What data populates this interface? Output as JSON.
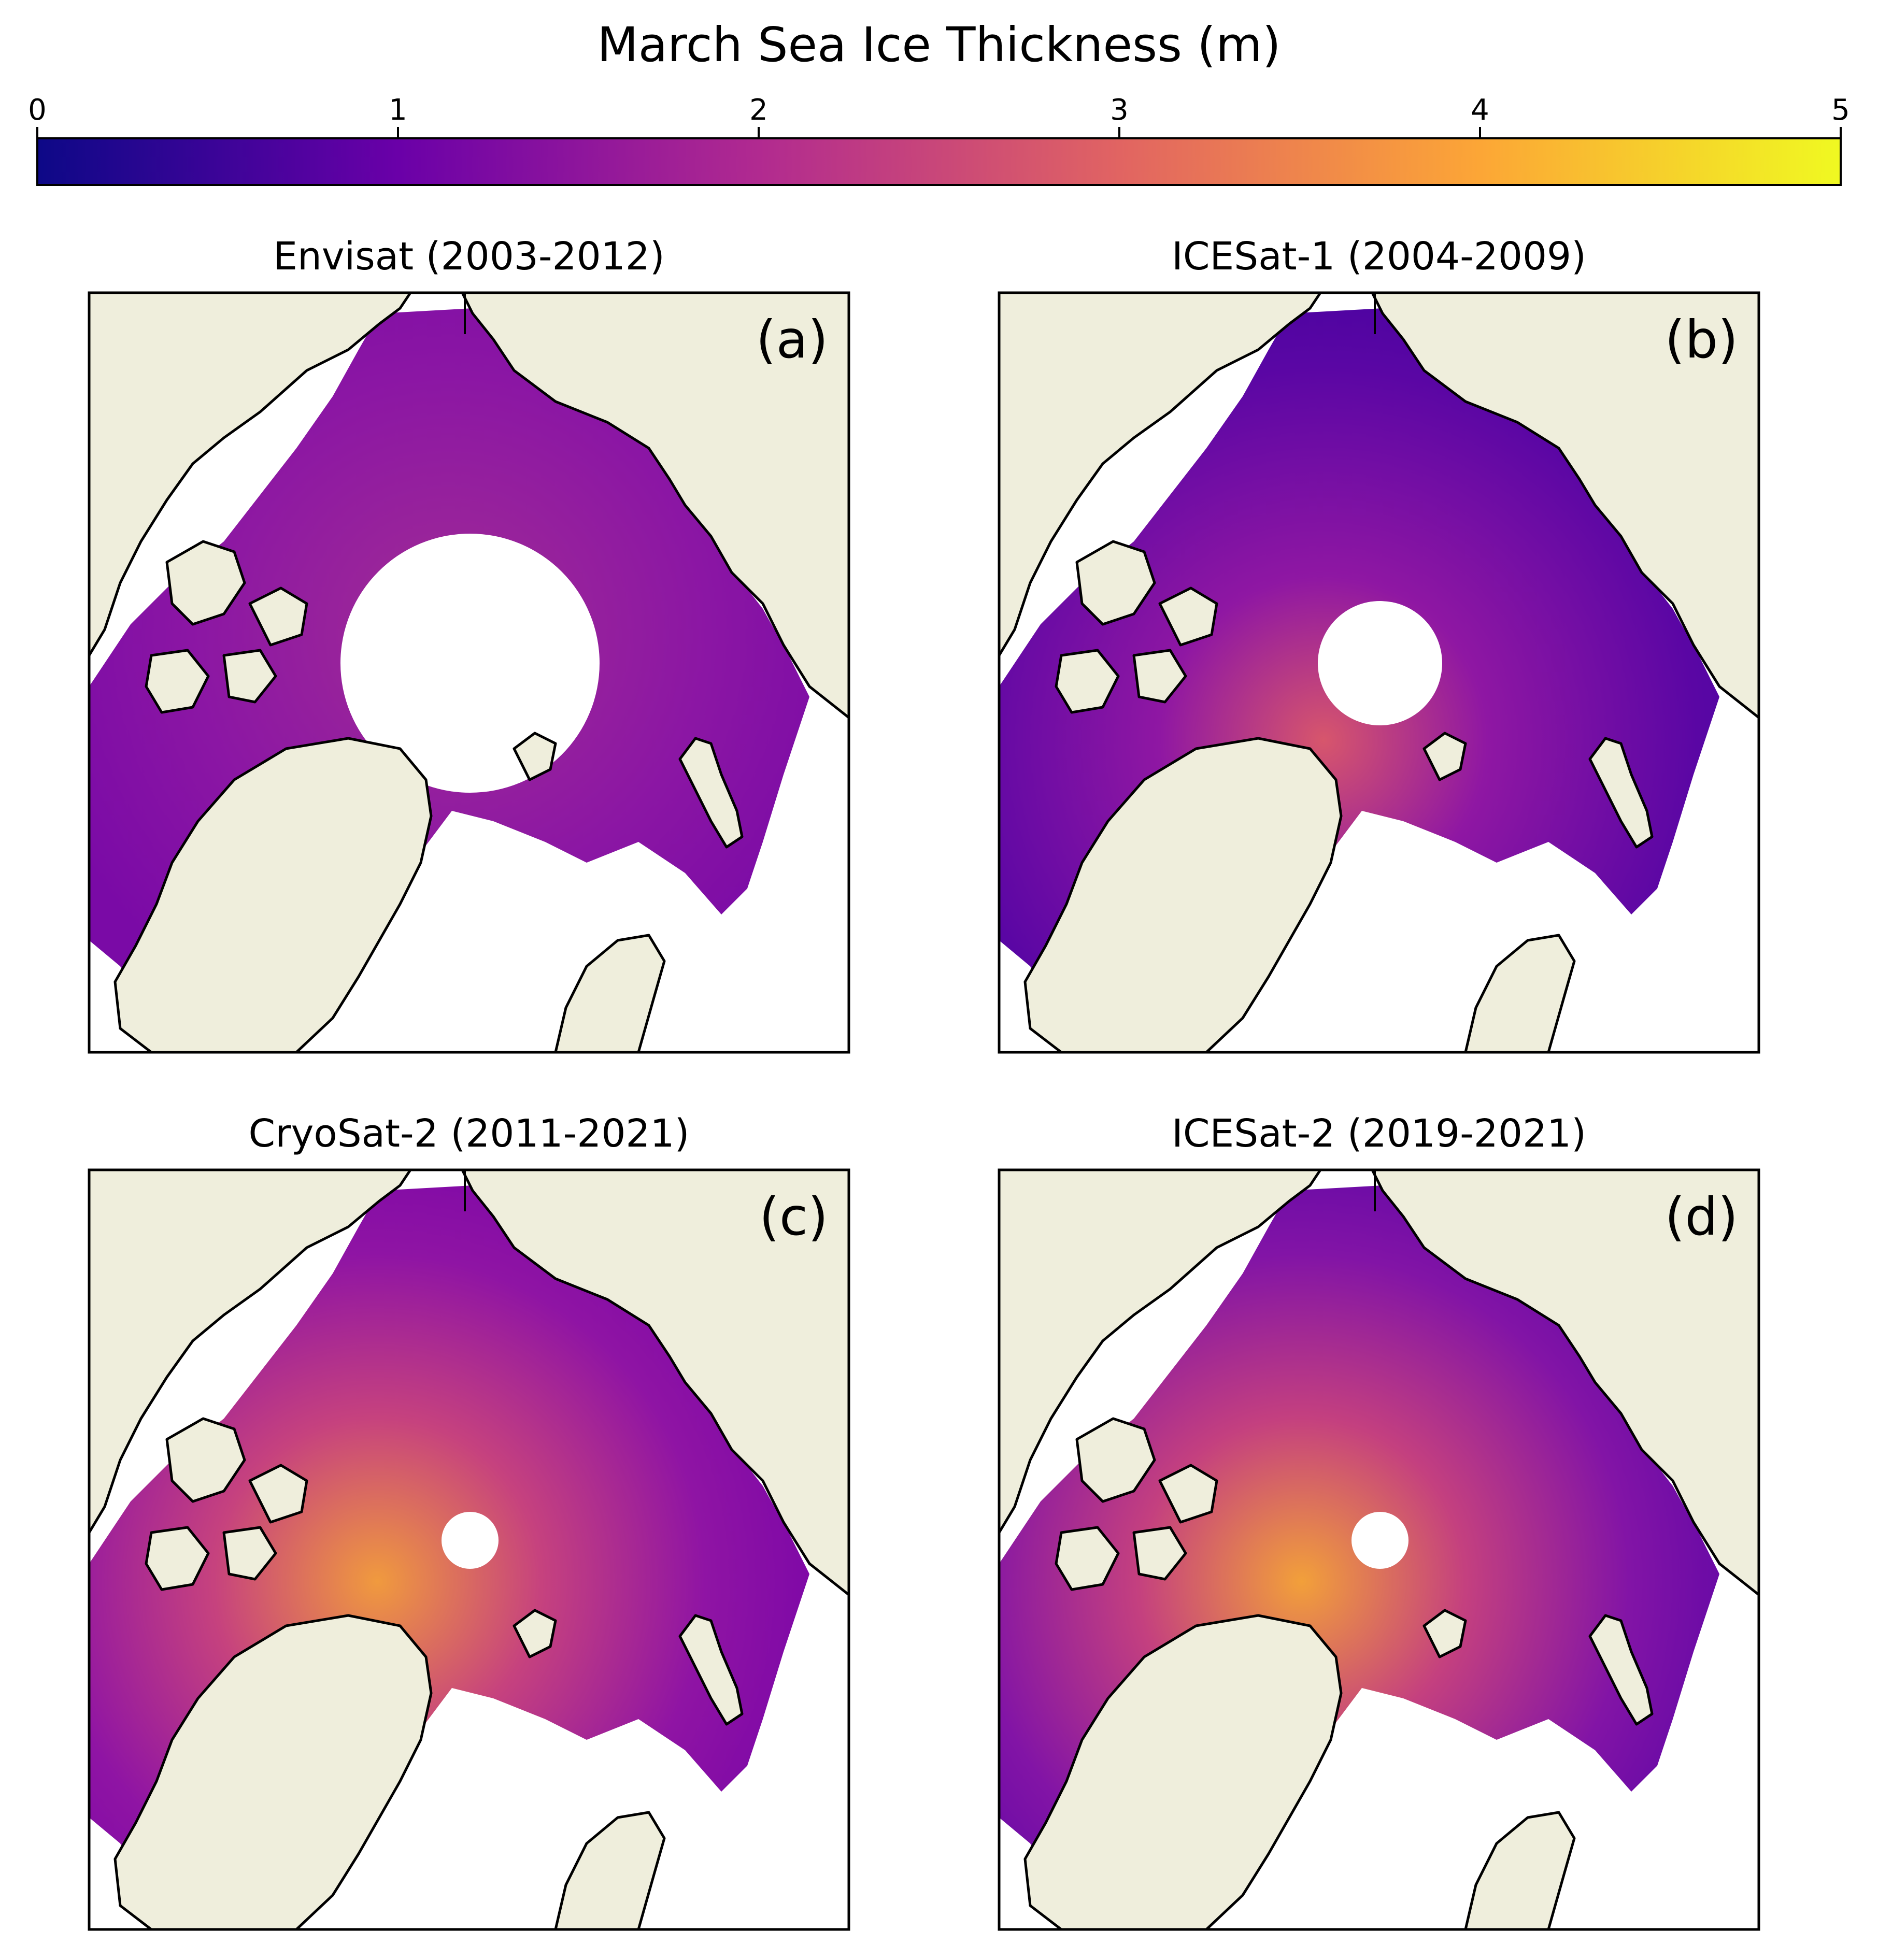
{
  "figure": {
    "title": "March Sea Ice Thickness (m)"
  },
  "colorbar": {
    "min": 0,
    "max": 5,
    "ticks": [
      "0",
      "1",
      "2",
      "3",
      "4",
      "5"
    ],
    "colormap": "plasma",
    "stops": [
      "#0d0887",
      "#6a00a8",
      "#b12a90",
      "#e16462",
      "#fca636",
      "#f0f921"
    ]
  },
  "colors": {
    "land": "#efeedc",
    "ocean_nodata": "#ffffff",
    "coast": "#000000"
  },
  "panels": [
    {
      "id": "a",
      "title": "Envisat (2003-2012)",
      "label": "(a)",
      "pole_hole_radius_km": "large"
    },
    {
      "id": "b",
      "title": "ICESat-1 (2004-2009)",
      "label": "(b)",
      "pole_hole_radius_km": "medium"
    },
    {
      "id": "c",
      "title": "CryoSat-2 (2011-2021)",
      "label": "(c)",
      "pole_hole_radius_km": "small"
    },
    {
      "id": "d",
      "title": "ICESat-2 (2019-2021)",
      "label": "(d)",
      "pole_hole_radius_km": "small"
    }
  ]
}
